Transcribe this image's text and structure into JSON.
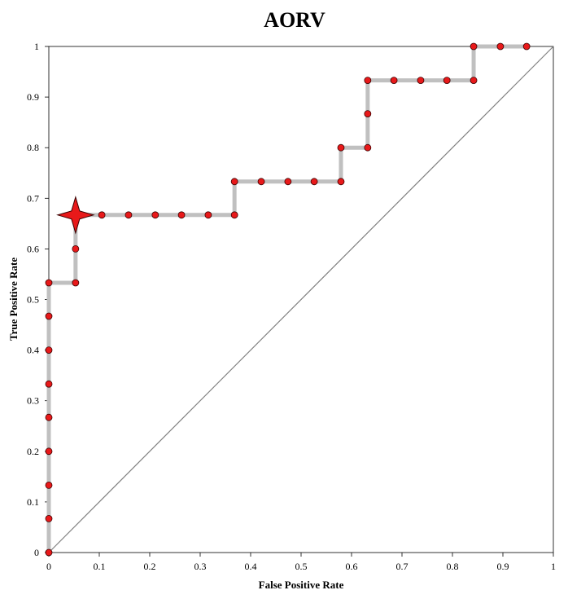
{
  "chart_data": {
    "type": "line",
    "title": "AORV",
    "xlabel": "False Positive Rate",
    "ylabel": "True Positive Rate",
    "xlim": [
      0,
      1
    ],
    "ylim": [
      0,
      1
    ],
    "x_ticks": [
      "0",
      "0.1",
      "0.2",
      "0.3",
      "0.4",
      "0.5",
      "0.6",
      "0.7",
      "0.8",
      "0.9",
      "1"
    ],
    "y_ticks": [
      "0",
      "0.1",
      "0.2",
      "0.3",
      "0.4",
      "0.5",
      "0.6",
      "0.7",
      "0.8",
      "0.9",
      "1"
    ],
    "grid": false,
    "legend": "none",
    "series": [
      {
        "line_color": "#c0c0c0",
        "marker_color": "#e8191a",
        "x": [
          0,
          0,
          0,
          0,
          0,
          0,
          0,
          0,
          0,
          0.053,
          0.053,
          0.053,
          0.105,
          0.158,
          0.211,
          0.263,
          0.316,
          0.368,
          0.368,
          0.421,
          0.474,
          0.526,
          0.579,
          0.579,
          0.632,
          0.632,
          0.632,
          0.684,
          0.737,
          0.789,
          0.842,
          0.842,
          0.895,
          0.947
        ],
        "y": [
          0,
          0.067,
          0.133,
          0.2,
          0.267,
          0.333,
          0.4,
          0.467,
          0.533,
          0.533,
          0.6,
          0.667,
          0.667,
          0.667,
          0.667,
          0.667,
          0.667,
          0.667,
          0.733,
          0.733,
          0.733,
          0.733,
          0.733,
          0.8,
          0.8,
          0.867,
          0.933,
          0.933,
          0.933,
          0.933,
          0.933,
          1,
          1,
          1
        ]
      }
    ],
    "reference_line": {
      "from": [
        0,
        0
      ],
      "to": [
        1,
        1
      ],
      "color": "#808080"
    },
    "highlight_point": {
      "x": 0.053,
      "y": 0.667,
      "marker": "four-point-star",
      "color": "#e8191a"
    }
  }
}
